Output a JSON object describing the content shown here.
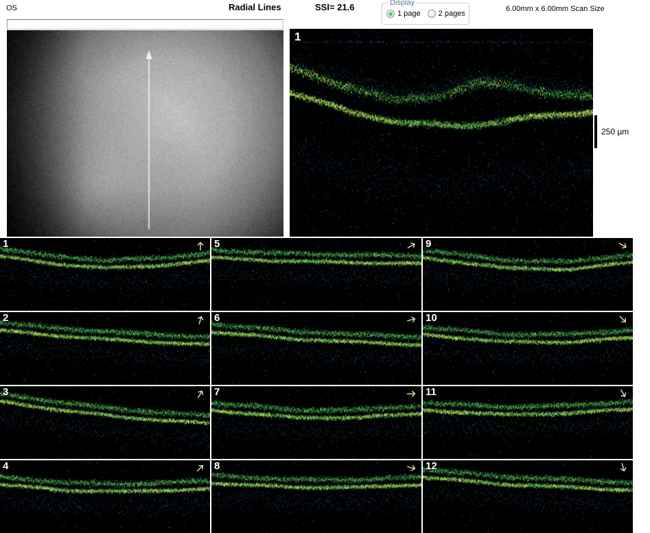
{
  "header": {
    "eye_label": "OS",
    "title": "Radial Lines",
    "ssi_label": "SSI= 21.6",
    "display_group": {
      "label": "Display",
      "options": [
        {
          "label": "1 page",
          "selected": true
        },
        {
          "label": "2 pages",
          "selected": false
        }
      ]
    },
    "scan_size_label": "6.00mm x 6.00mm Scan Size"
  },
  "fundus_panel": {
    "scan_line_icon": "vertical-arrow-up"
  },
  "main_scan": {
    "label": "1",
    "scale_bar_label": "250 µm"
  },
  "grid": {
    "panels": [
      {
        "label": "1",
        "arrow_deg": 90
      },
      {
        "label": "2",
        "arrow_deg": 75
      },
      {
        "label": "3",
        "arrow_deg": 60
      },
      {
        "label": "4",
        "arrow_deg": 45
      },
      {
        "label": "5",
        "arrow_deg": 30
      },
      {
        "label": "6",
        "arrow_deg": 15
      },
      {
        "label": "7",
        "arrow_deg": 0
      },
      {
        "label": "8",
        "arrow_deg": -15
      },
      {
        "label": "9",
        "arrow_deg": -30
      },
      {
        "label": "10",
        "arrow_deg": -45
      },
      {
        "label": "11",
        "arrow_deg": -60
      },
      {
        "label": "12",
        "arrow_deg": -75
      }
    ]
  },
  "colors": {
    "background": "#ffffff",
    "scan_background": "#000000",
    "band_green": "#3fd45f",
    "band_yellow": "#dce95c",
    "speckle_blue": "#2d62a8",
    "panel_arrow": "#ddd8a4",
    "groupbox_caption": "#5a7687",
    "radio_selected_dot": "#4da032",
    "scan_line": "#f2f2f2"
  }
}
